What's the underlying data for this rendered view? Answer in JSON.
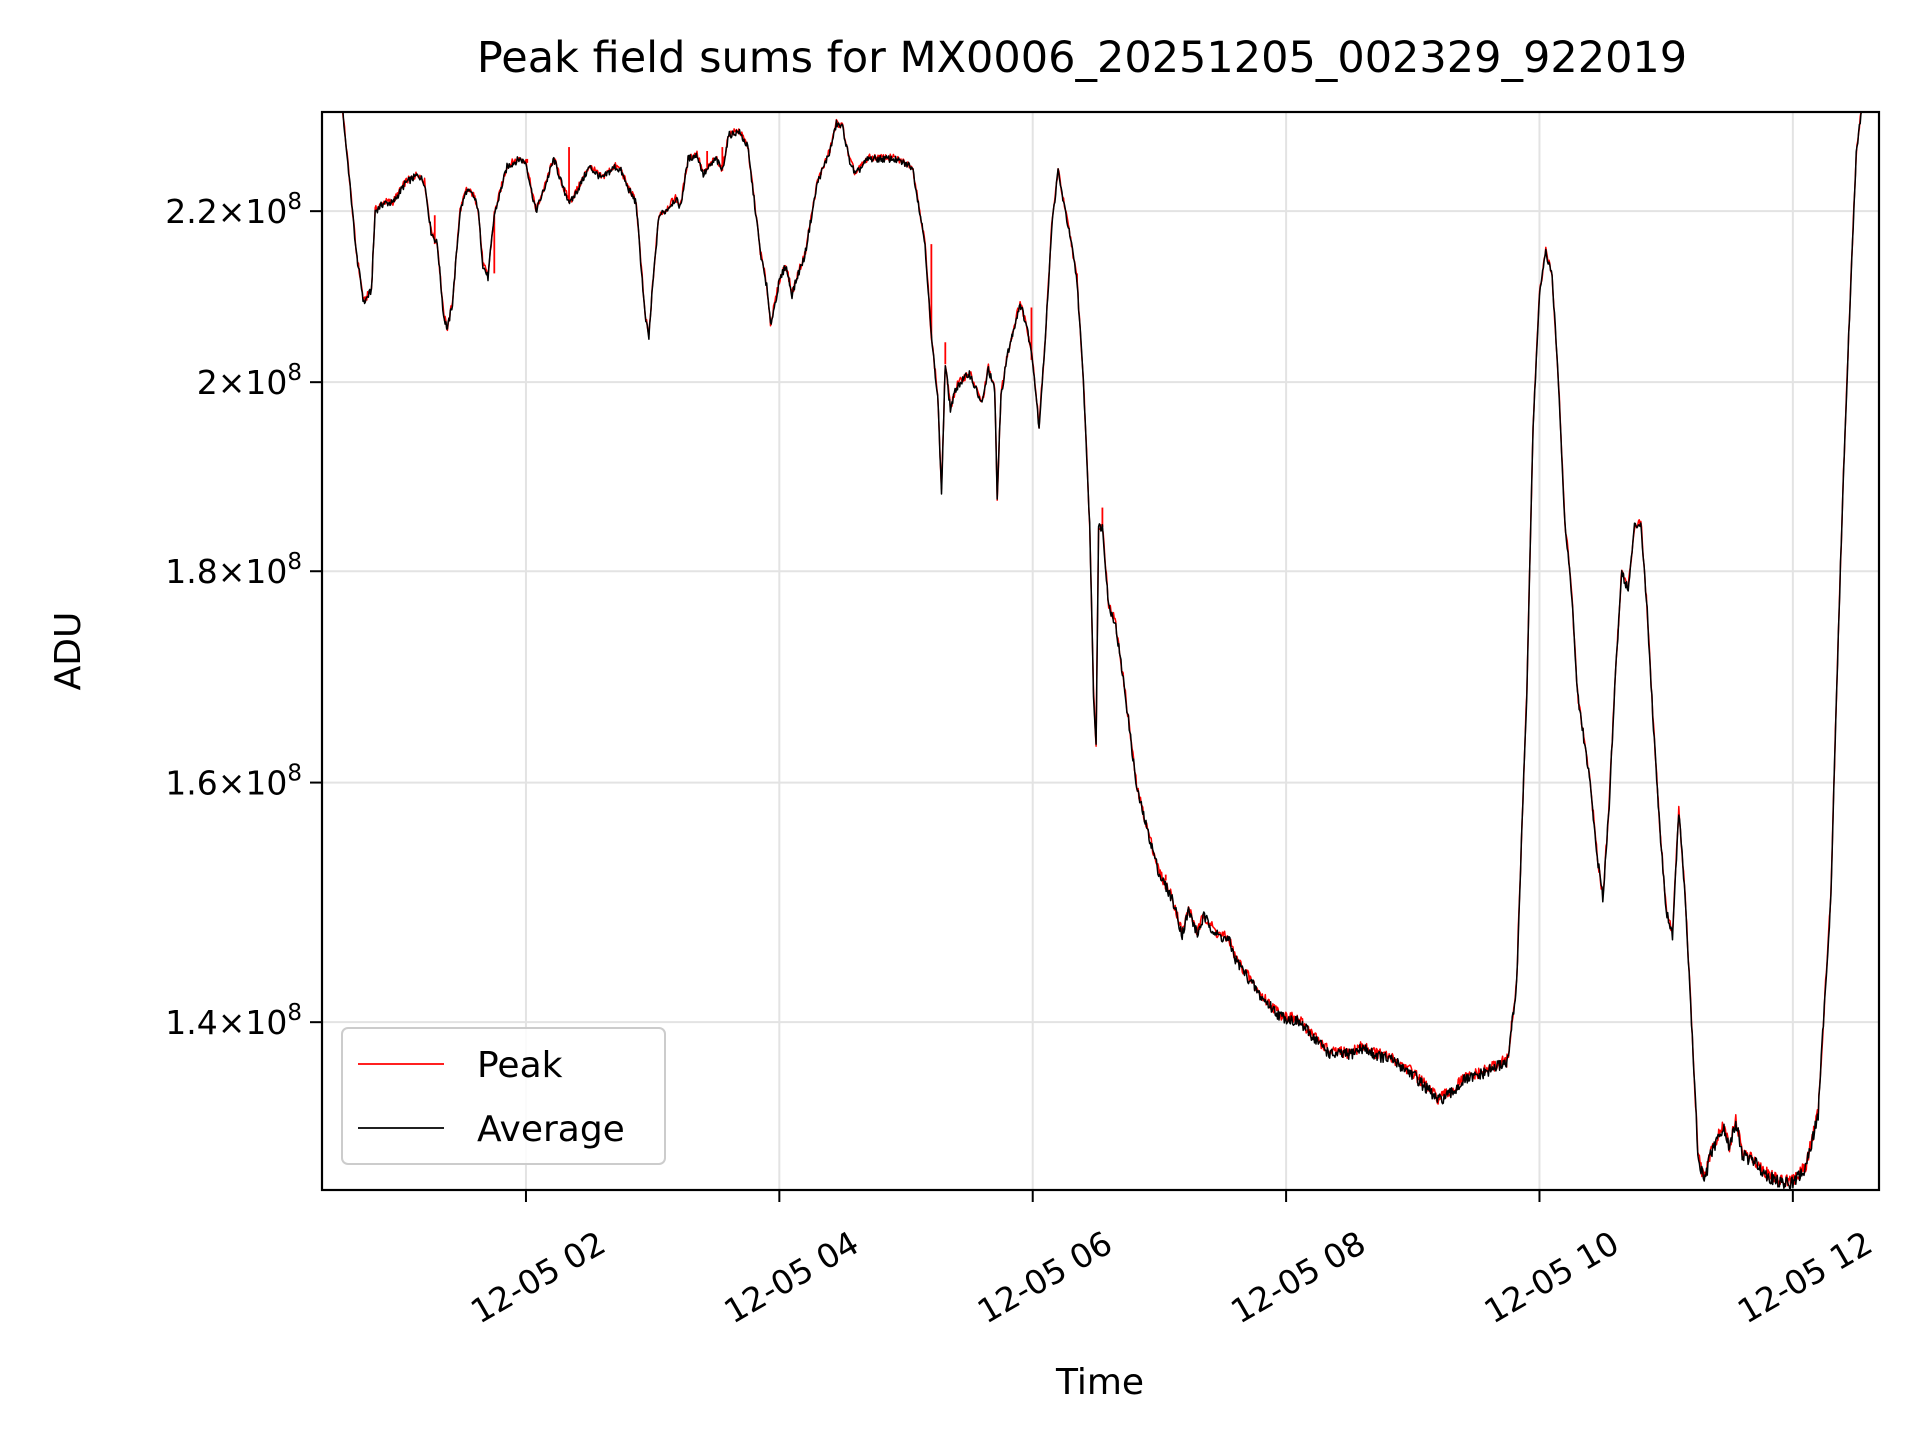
{
  "chart_data": {
    "type": "line",
    "title": "Peak field sums for MX0006_20251205_002329_922019",
    "xlabel": "Time",
    "ylabel": "ADU",
    "x_unit": "hours since 12-05 00:00",
    "xlim": [
      0.39,
      12.68
    ],
    "ylim": [
      127500000,
      232500000
    ],
    "yscale": "log",
    "grid": true,
    "legend_position": "lower-left",
    "x_ticks": [
      {
        "value": 2,
        "label": "12-05 02"
      },
      {
        "value": 4,
        "label": "12-05 04"
      },
      {
        "value": 6,
        "label": "12-05 06"
      },
      {
        "value": 8,
        "label": "12-05 08"
      },
      {
        "value": 10,
        "label": "12-05 10"
      },
      {
        "value": 12,
        "label": "12-05 12"
      }
    ],
    "y_ticks": [
      {
        "value": 140000000,
        "mantissa": "1.4",
        "base": "10",
        "exponent": "8"
      },
      {
        "value": 160000000,
        "mantissa": "1.6",
        "base": "10",
        "exponent": "8"
      },
      {
        "value": 180000000,
        "mantissa": "1.8",
        "base": "10",
        "exponent": "8"
      },
      {
        "value": 200000000,
        "mantissa": "2",
        "base": "10",
        "exponent": "8"
      },
      {
        "value": 220000000,
        "mantissa": "2.2",
        "base": "10",
        "exponent": "8"
      }
    ],
    "series": [
      {
        "name": "Peak",
        "color": "#ff0000",
        "spikes": [
          [
            1.28,
            219.5
          ],
          [
            1.75,
            212.5
          ],
          [
            2.01,
            226.5
          ],
          [
            2.34,
            228.0
          ],
          [
            3.43,
            227.5
          ],
          [
            3.55,
            228.0
          ],
          [
            5.2,
            216.0
          ],
          [
            5.31,
            204.5
          ],
          [
            5.99,
            208.5
          ],
          [
            6.35,
            212.5
          ],
          [
            6.55,
            186.5
          ],
          [
            7.05,
            151.5
          ],
          [
            8.86,
            137.0
          ],
          [
            9.74,
            136.5
          ]
        ]
      },
      {
        "name": "Average",
        "color": "#000000",
        "points": [
          [
            0.39,
            234.0
          ],
          [
            0.55,
            233.0
          ],
          [
            0.6,
            225.0
          ],
          [
            0.66,
            215.0
          ],
          [
            0.72,
            209.0
          ],
          [
            0.78,
            210.5
          ],
          [
            0.81,
            220.0
          ],
          [
            0.88,
            221.0
          ],
          [
            0.95,
            221.0
          ],
          [
            1.05,
            223.5
          ],
          [
            1.15,
            224.5
          ],
          [
            1.2,
            223.5
          ],
          [
            1.25,
            217.5
          ],
          [
            1.3,
            216.0
          ],
          [
            1.35,
            207.5
          ],
          [
            1.38,
            206.0
          ],
          [
            1.42,
            209.0
          ],
          [
            1.48,
            220.0
          ],
          [
            1.53,
            222.5
          ],
          [
            1.58,
            222.0
          ],
          [
            1.62,
            220.5
          ],
          [
            1.66,
            213.5
          ],
          [
            1.7,
            212.0
          ],
          [
            1.75,
            219.5
          ],
          [
            1.85,
            225.5
          ],
          [
            1.95,
            226.5
          ],
          [
            2.0,
            226.0
          ],
          [
            2.05,
            222.0
          ],
          [
            2.08,
            220.0
          ],
          [
            2.15,
            223.0
          ],
          [
            2.22,
            226.5
          ],
          [
            2.3,
            222.5
          ],
          [
            2.35,
            221.0
          ],
          [
            2.42,
            223.0
          ],
          [
            2.5,
            225.5
          ],
          [
            2.6,
            224.0
          ],
          [
            2.7,
            225.5
          ],
          [
            2.75,
            225.0
          ],
          [
            2.8,
            223.0
          ],
          [
            2.87,
            221.0
          ],
          [
            2.9,
            215.0
          ],
          [
            2.94,
            207.5
          ],
          [
            2.97,
            205.0
          ],
          [
            3.0,
            211.0
          ],
          [
            3.05,
            219.5
          ],
          [
            3.1,
            220.0
          ],
          [
            3.18,
            221.5
          ],
          [
            3.22,
            220.5
          ],
          [
            3.28,
            226.5
          ],
          [
            3.35,
            227.0
          ],
          [
            3.4,
            224.5
          ],
          [
            3.45,
            225.5
          ],
          [
            3.5,
            226.5
          ],
          [
            3.55,
            225.0
          ],
          [
            3.6,
            229.5
          ],
          [
            3.68,
            230.0
          ],
          [
            3.75,
            228.0
          ],
          [
            3.8,
            221.5
          ],
          [
            3.85,
            215.0
          ],
          [
            3.9,
            211.0
          ],
          [
            3.93,
            206.5
          ],
          [
            3.96,
            208.5
          ],
          [
            4.0,
            211.5
          ],
          [
            4.05,
            213.5
          ],
          [
            4.1,
            210.0
          ],
          [
            4.15,
            212.5
          ],
          [
            4.2,
            214.5
          ],
          [
            4.25,
            219.0
          ],
          [
            4.3,
            223.5
          ],
          [
            4.4,
            227.5
          ],
          [
            4.45,
            231.0
          ],
          [
            4.5,
            230.5
          ],
          [
            4.55,
            226.5
          ],
          [
            4.6,
            224.5
          ],
          [
            4.7,
            226.5
          ],
          [
            4.9,
            226.5
          ],
          [
            5.05,
            225.5
          ],
          [
            5.15,
            216.0
          ],
          [
            5.2,
            205.0
          ],
          [
            5.25,
            198.5
          ],
          [
            5.28,
            188.0
          ],
          [
            5.31,
            202.0
          ],
          [
            5.35,
            197.0
          ],
          [
            5.4,
            199.5
          ],
          [
            5.5,
            201.0
          ],
          [
            5.6,
            197.5
          ],
          [
            5.65,
            201.5
          ],
          [
            5.7,
            199.0
          ],
          [
            5.72,
            187.5
          ],
          [
            5.75,
            198.5
          ],
          [
            5.8,
            203.0
          ],
          [
            5.9,
            209.0
          ],
          [
            5.95,
            206.5
          ],
          [
            6.0,
            202.5
          ],
          [
            6.05,
            195.0
          ],
          [
            6.1,
            205.0
          ],
          [
            6.15,
            218.0
          ],
          [
            6.2,
            225.0
          ],
          [
            6.25,
            220.5
          ],
          [
            6.3,
            216.5
          ],
          [
            6.35,
            211.5
          ],
          [
            6.4,
            200.0
          ],
          [
            6.45,
            184.5
          ],
          [
            6.48,
            168.0
          ],
          [
            6.5,
            163.5
          ],
          [
            6.52,
            184.5
          ],
          [
            6.55,
            184.5
          ],
          [
            6.6,
            176.5
          ],
          [
            6.65,
            175.0
          ],
          [
            6.72,
            169.0
          ],
          [
            6.82,
            159.5
          ],
          [
            6.9,
            156.0
          ],
          [
            7.0,
            152.0
          ],
          [
            7.1,
            150.0
          ],
          [
            7.18,
            147.0
          ],
          [
            7.23,
            149.0
          ],
          [
            7.3,
            147.0
          ],
          [
            7.35,
            148.5
          ],
          [
            7.45,
            147.0
          ],
          [
            7.55,
            146.5
          ],
          [
            7.6,
            145.0
          ],
          [
            7.8,
            142.0
          ],
          [
            7.95,
            140.5
          ],
          [
            8.1,
            140.0
          ],
          [
            8.2,
            139.0
          ],
          [
            8.35,
            137.5
          ],
          [
            8.5,
            137.5
          ],
          [
            8.6,
            138.0
          ],
          [
            8.7,
            137.5
          ],
          [
            8.85,
            137.0
          ],
          [
            9.0,
            136.0
          ],
          [
            9.1,
            135.0
          ],
          [
            9.2,
            134.0
          ],
          [
            9.3,
            134.5
          ],
          [
            9.4,
            135.5
          ],
          [
            9.55,
            136.0
          ],
          [
            9.65,
            136.5
          ],
          [
            9.75,
            137.0
          ],
          [
            9.82,
            143.0
          ],
          [
            9.9,
            168.0
          ],
          [
            9.95,
            195.0
          ],
          [
            10.0,
            210.0
          ],
          [
            10.05,
            215.0
          ],
          [
            10.1,
            212.0
          ],
          [
            10.15,
            200.0
          ],
          [
            10.2,
            185.0
          ],
          [
            10.25,
            178.5
          ],
          [
            10.3,
            168.0
          ],
          [
            10.35,
            164.0
          ],
          [
            10.4,
            160.0
          ],
          [
            10.45,
            154.0
          ],
          [
            10.5,
            150.0
          ],
          [
            10.55,
            158.0
          ],
          [
            10.6,
            170.0
          ],
          [
            10.65,
            180.0
          ],
          [
            10.7,
            178.0
          ],
          [
            10.75,
            184.5
          ],
          [
            10.8,
            185.0
          ],
          [
            10.85,
            176.0
          ],
          [
            10.9,
            165.0
          ],
          [
            10.95,
            156.0
          ],
          [
            11.0,
            149.0
          ],
          [
            11.05,
            147.0
          ],
          [
            11.1,
            157.5
          ],
          [
            11.15,
            150.0
          ],
          [
            11.2,
            140.0
          ],
          [
            11.25,
            130.0
          ],
          [
            11.3,
            128.0
          ],
          [
            11.35,
            130.0
          ],
          [
            11.45,
            132.0
          ],
          [
            11.5,
            130.5
          ],
          [
            11.55,
            132.5
          ],
          [
            11.6,
            130.0
          ],
          [
            11.7,
            129.5
          ],
          [
            11.8,
            128.5
          ],
          [
            11.9,
            128.0
          ],
          [
            12.0,
            128.0
          ],
          [
            12.1,
            129.0
          ],
          [
            12.2,
            133.0
          ],
          [
            12.3,
            150.0
          ],
          [
            12.4,
            190.0
          ],
          [
            12.5,
            227.0
          ],
          [
            12.55,
            234.0
          ],
          [
            12.68,
            234.0
          ]
        ]
      }
    ]
  }
}
